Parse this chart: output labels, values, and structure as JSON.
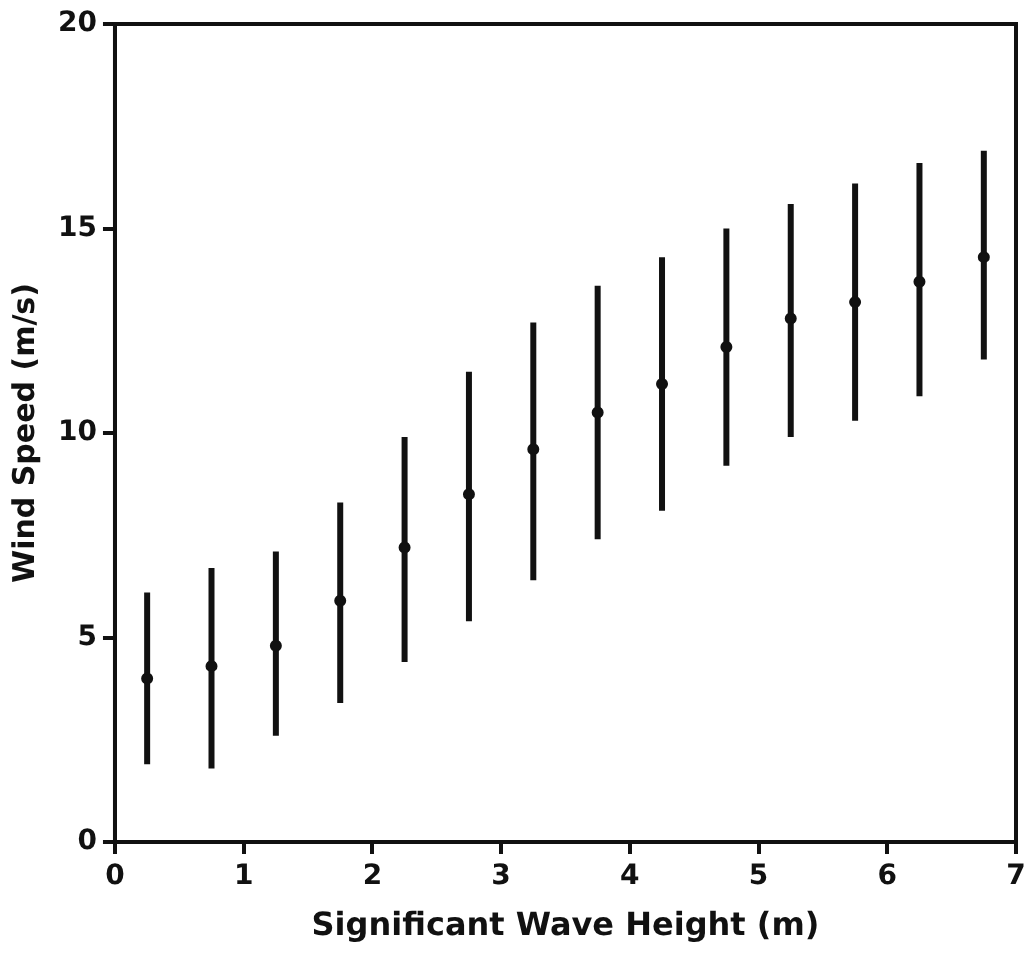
{
  "chart_data": {
    "type": "scatter",
    "xlabel": "Significant Wave Height (m)",
    "ylabel": "Wind Speed (m/s)",
    "x": [
      0.25,
      0.75,
      1.25,
      1.75,
      2.25,
      2.75,
      3.25,
      3.75,
      4.25,
      4.75,
      5.25,
      5.75,
      6.25,
      6.75
    ],
    "values": [
      4.0,
      4.3,
      4.8,
      5.9,
      7.2,
      8.5,
      9.6,
      10.5,
      11.2,
      12.1,
      12.8,
      13.2,
      13.7,
      14.3
    ],
    "errors": [
      [
        1.9,
        6.1
      ],
      [
        1.8,
        6.7
      ],
      [
        2.6,
        7.1
      ],
      [
        3.4,
        8.3
      ],
      [
        4.4,
        9.9
      ],
      [
        5.4,
        11.5
      ],
      [
        6.4,
        12.7
      ],
      [
        7.4,
        13.6
      ],
      [
        8.1,
        14.3
      ],
      [
        9.2,
        15.0
      ],
      [
        9.9,
        15.6
      ],
      [
        10.3,
        16.1
      ],
      [
        10.9,
        16.6
      ],
      [
        11.8,
        16.9
      ]
    ],
    "color": "#111111",
    "marker": "circle",
    "xlim": [
      0,
      7
    ],
    "xticks": [
      0,
      1,
      2,
      3,
      4,
      5,
      6,
      7
    ],
    "ylim": [
      0,
      20
    ],
    "yticks": [
      0,
      5,
      10,
      15,
      20
    ],
    "grid": false,
    "legend": false
  }
}
